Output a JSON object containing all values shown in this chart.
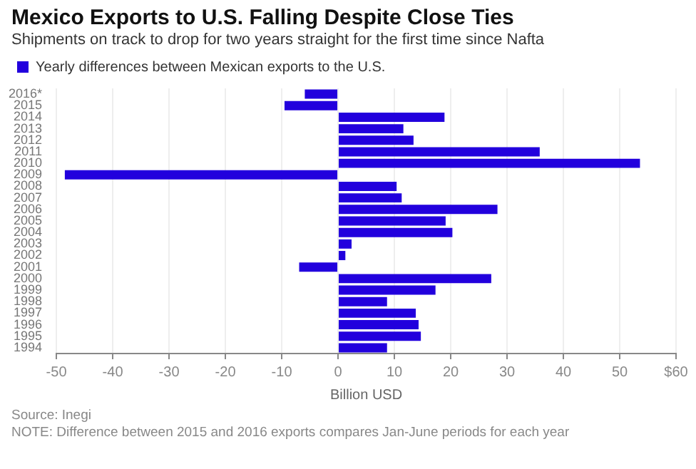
{
  "chart_data": {
    "type": "bar",
    "orientation": "horizontal",
    "title": "Mexico Exports to U.S. Falling Despite Close Ties",
    "subtitle": "Shipments on track to drop for two years straight for the first time since Nafta",
    "xlabel": "Billion USD",
    "categories": [
      "2016*",
      "2015",
      "2014",
      "2013",
      "2012",
      "2011",
      "2010",
      "2009",
      "2008",
      "2007",
      "2006",
      "2005",
      "2004",
      "2003",
      "2002",
      "2001",
      "2000",
      "1999",
      "1998",
      "1997",
      "1996",
      "1995",
      "1994"
    ],
    "series": [
      {
        "name": "Yearly differences between Mexican exports to the U.S.",
        "color": "#2200dd",
        "values": [
          -5.9,
          -9.5,
          18.9,
          11.6,
          13.4,
          35.8,
          53.6,
          -48.5,
          10.4,
          11.3,
          28.3,
          19.1,
          20.3,
          2.4,
          1.3,
          -6.9,
          27.2,
          17.3,
          8.7,
          13.8,
          14.3,
          14.7,
          8.7
        ]
      }
    ],
    "xlim": [
      -50,
      60
    ],
    "xticks": [
      -50,
      -40,
      -30,
      -20,
      -10,
      0,
      10,
      20,
      30,
      40,
      50,
      {
        "value": 60,
        "label": "$60"
      }
    ],
    "grid": "x",
    "legend": "top left",
    "annotations": [
      "Source: Inegi",
      "NOTE: Difference between 2015 and 2016 exports compares Jan-June periods for each year"
    ]
  }
}
